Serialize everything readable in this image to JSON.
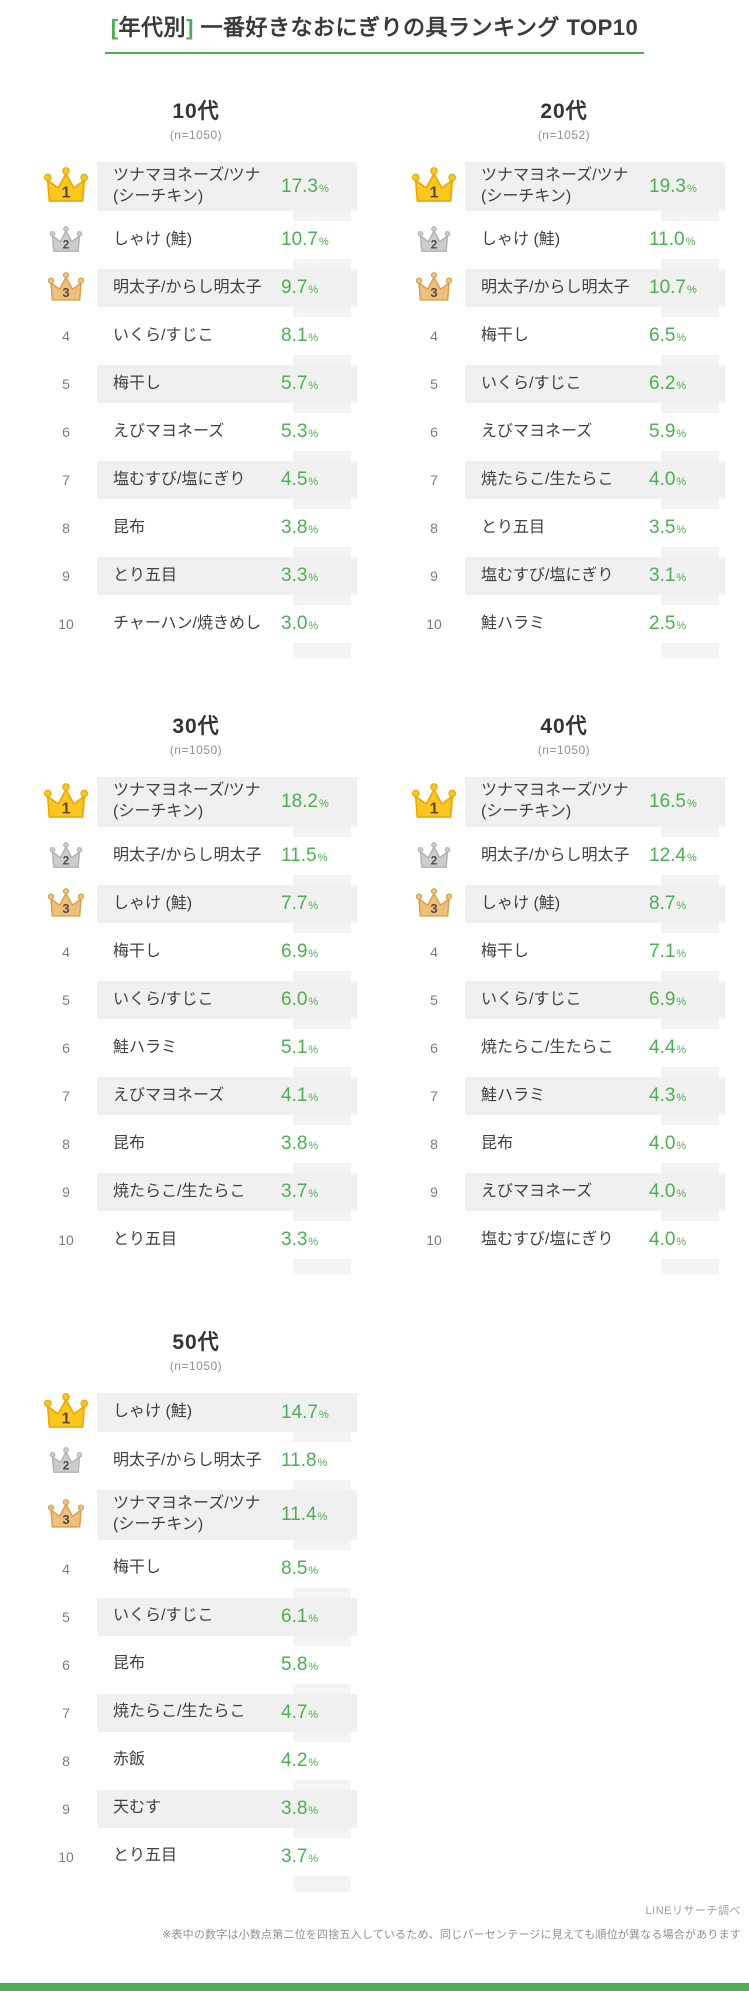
{
  "title": {
    "open": "[",
    "category": "年代別",
    "close": "]",
    "main": " 一番好きなおにぎりの具ランキング TOP10"
  },
  "colors": {
    "accent_green": "#4cb052",
    "row_shade": "#f0f0f0",
    "percent_column_stripe": "#f4f4f4",
    "crown_gold": "#ffc61e",
    "crown_gold_edge": "#edaa00",
    "crown_silver": "#cccccc",
    "crown_silver_edge": "#b0b0b0",
    "crown_bronze": "#eec078",
    "crown_bronze_edge": "#d79e4b"
  },
  "chart_data": {
    "type": "table",
    "title": "[年代別] 一番好きなおにぎりの具ランキング TOP10",
    "unit": "%",
    "legend_position": "none",
    "groups": [
      {
        "group": "10代",
        "n": 1050,
        "n_label": "(n=1050)",
        "ranking": [
          {
            "rank": 1,
            "item": "ツナマヨネーズ/ツナ (シーチキン)",
            "percent": 17.3
          },
          {
            "rank": 2,
            "item": "しゃけ (鮭)",
            "percent": 10.7
          },
          {
            "rank": 3,
            "item": "明太子/からし明太子",
            "percent": 9.7
          },
          {
            "rank": 4,
            "item": "いくら/すじこ",
            "percent": 8.1
          },
          {
            "rank": 5,
            "item": "梅干し",
            "percent": 5.7
          },
          {
            "rank": 6,
            "item": "えびマヨネーズ",
            "percent": 5.3
          },
          {
            "rank": 7,
            "item": "塩むすび/塩にぎり",
            "percent": 4.5
          },
          {
            "rank": 8,
            "item": "昆布",
            "percent": 3.8
          },
          {
            "rank": 9,
            "item": "とり五目",
            "percent": 3.3
          },
          {
            "rank": 10,
            "item": "チャーハン/焼きめし",
            "percent": 3.0
          }
        ]
      },
      {
        "group": "20代",
        "n": 1052,
        "n_label": "(n=1052)",
        "ranking": [
          {
            "rank": 1,
            "item": "ツナマヨネーズ/ツナ (シーチキン)",
            "percent": 19.3
          },
          {
            "rank": 2,
            "item": "しゃけ (鮭)",
            "percent": 11.0
          },
          {
            "rank": 3,
            "item": "明太子/からし明太子",
            "percent": 10.7
          },
          {
            "rank": 4,
            "item": "梅干し",
            "percent": 6.5
          },
          {
            "rank": 5,
            "item": "いくら/すじこ",
            "percent": 6.2
          },
          {
            "rank": 6,
            "item": "えびマヨネーズ",
            "percent": 5.9
          },
          {
            "rank": 7,
            "item": "焼たらこ/生たらこ",
            "percent": 4.0
          },
          {
            "rank": 8,
            "item": "とり五目",
            "percent": 3.5
          },
          {
            "rank": 9,
            "item": "塩むすび/塩にぎり",
            "percent": 3.1
          },
          {
            "rank": 10,
            "item": "鮭ハラミ",
            "percent": 2.5
          }
        ]
      },
      {
        "group": "30代",
        "n": 1050,
        "n_label": "(n=1050)",
        "ranking": [
          {
            "rank": 1,
            "item": "ツナマヨネーズ/ツナ (シーチキン)",
            "percent": 18.2
          },
          {
            "rank": 2,
            "item": "明太子/からし明太子",
            "percent": 11.5
          },
          {
            "rank": 3,
            "item": "しゃけ (鮭)",
            "percent": 7.7
          },
          {
            "rank": 4,
            "item": "梅干し",
            "percent": 6.9
          },
          {
            "rank": 5,
            "item": "いくら/すじこ",
            "percent": 6.0
          },
          {
            "rank": 6,
            "item": "鮭ハラミ",
            "percent": 5.1
          },
          {
            "rank": 7,
            "item": "えびマヨネーズ",
            "percent": 4.1
          },
          {
            "rank": 8,
            "item": "昆布",
            "percent": 3.8
          },
          {
            "rank": 9,
            "item": "焼たらこ/生たらこ",
            "percent": 3.7
          },
          {
            "rank": 10,
            "item": "とり五目",
            "percent": 3.3
          }
        ]
      },
      {
        "group": "40代",
        "n": 1050,
        "n_label": "(n=1050)",
        "ranking": [
          {
            "rank": 1,
            "item": "ツナマヨネーズ/ツナ (シーチキン)",
            "percent": 16.5
          },
          {
            "rank": 2,
            "item": "明太子/からし明太子",
            "percent": 12.4
          },
          {
            "rank": 3,
            "item": "しゃけ (鮭)",
            "percent": 8.7
          },
          {
            "rank": 4,
            "item": "梅干し",
            "percent": 7.1
          },
          {
            "rank": 5,
            "item": "いくら/すじこ",
            "percent": 6.9
          },
          {
            "rank": 6,
            "item": "焼たらこ/生たらこ",
            "percent": 4.4
          },
          {
            "rank": 7,
            "item": "鮭ハラミ",
            "percent": 4.3
          },
          {
            "rank": 8,
            "item": "昆布",
            "percent": 4.0
          },
          {
            "rank": 9,
            "item": "えびマヨネーズ",
            "percent": 4.0
          },
          {
            "rank": 10,
            "item": "塩むすび/塩にぎり",
            "percent": 4.0
          }
        ]
      },
      {
        "group": "50代",
        "n": 1050,
        "n_label": "(n=1050)",
        "ranking": [
          {
            "rank": 1,
            "item": "しゃけ (鮭)",
            "percent": 14.7
          },
          {
            "rank": 2,
            "item": "明太子/からし明太子",
            "percent": 11.8
          },
          {
            "rank": 3,
            "item": "ツナマヨネーズ/ツナ (シーチキン)",
            "percent": 11.4
          },
          {
            "rank": 4,
            "item": "梅干し",
            "percent": 8.5
          },
          {
            "rank": 5,
            "item": "いくら/すじこ",
            "percent": 6.1
          },
          {
            "rank": 6,
            "item": "昆布",
            "percent": 5.8
          },
          {
            "rank": 7,
            "item": "焼たらこ/生たらこ",
            "percent": 4.7
          },
          {
            "rank": 8,
            "item": "赤飯",
            "percent": 4.2
          },
          {
            "rank": 9,
            "item": "天むす",
            "percent": 3.8
          },
          {
            "rank": 10,
            "item": "とり五目",
            "percent": 3.7
          }
        ]
      }
    ],
    "source": "LINEリサーチ調べ"
  },
  "footer": {
    "source": "LINEリサーチ調べ",
    "note": "※表中の数字は小数点第二位を四捨五入しているため、同じパーセンテージに見えても順位が異なる場合があります"
  }
}
